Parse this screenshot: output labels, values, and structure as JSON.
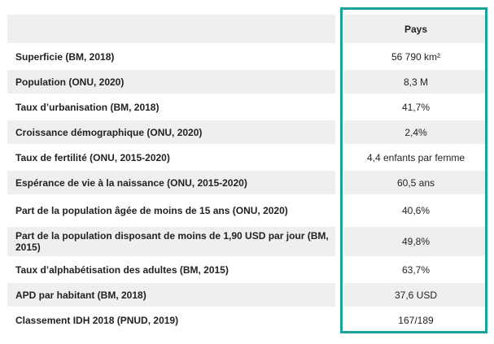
{
  "table": {
    "header": {
      "label": "",
      "value": "Pays"
    },
    "rows": [
      {
        "label": "Superficie (BM, 2018)",
        "value": "56 790 km²"
      },
      {
        "label": "Population (ONU, 2020)",
        "value": "8,3 M"
      },
      {
        "label": "Taux d’urbanisation (BM, 2018)",
        "value": "41,7%"
      },
      {
        "label": "Croissance démographique (ONU, 2020)",
        "value": "2,4%"
      },
      {
        "label": "Taux de fertilité (ONU, 2015-2020)",
        "value": "4,4 enfants par femme"
      },
      {
        "label": "Espérance de vie à la naissance (ONU, 2015-2020)",
        "value": "60,5 ans"
      },
      {
        "label": "Part de la population âgée de moins de 15 ans (ONU, 2020)",
        "value": "40,6%"
      },
      {
        "label": "Part de la population disposant de moins de 1,90 USD par jour (BM, 2015)",
        "value": "49,8%"
      },
      {
        "label": "Taux d’alphabétisation des adultes (BM, 2015)",
        "value": "63,7%"
      },
      {
        "label": "APD par habitant (BM, 2018)",
        "value": "37,6 USD"
      },
      {
        "label": "Classement IDH 2018 (PNUD, 2019)",
        "value": "167/189"
      }
    ]
  },
  "colors": {
    "highlight_border": "#1aa39a",
    "row_shade": "#efefef"
  }
}
